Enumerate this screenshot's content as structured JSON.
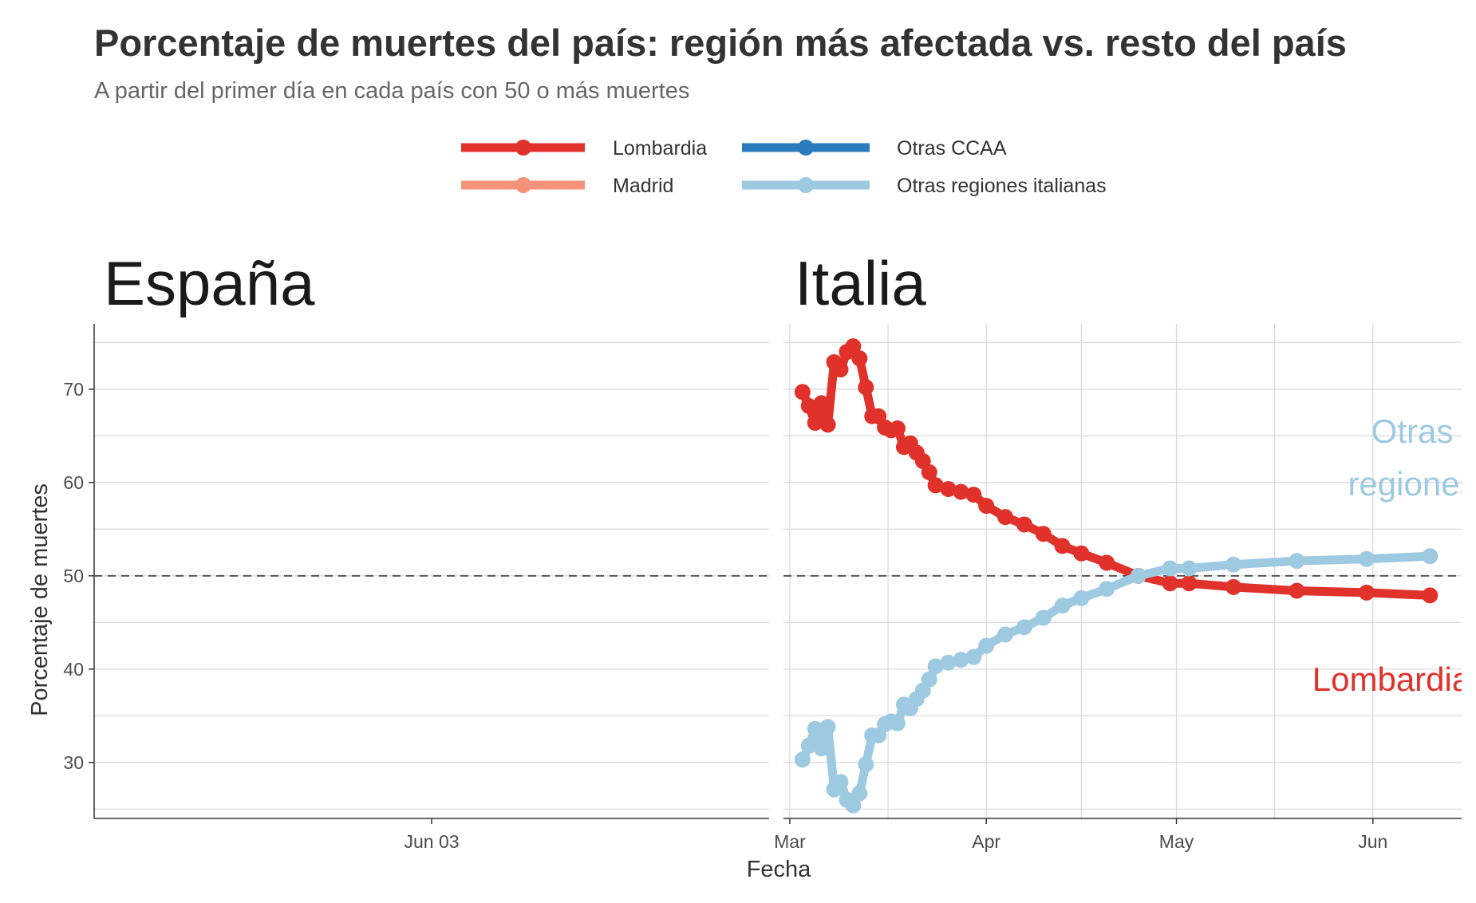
{
  "title": "Porcentaje de muertes del país: región más afectada vs. resto del país",
  "subtitle": "A partir del primer día en cada país con 50 o más muertes",
  "legend": [
    {
      "label": "Lombardia",
      "color": "#e0312a"
    },
    {
      "label": "Otras CCAA",
      "color": "#2c7bbd"
    },
    {
      "label": "Madrid",
      "color": "#f4937a"
    },
    {
      "label": "Otras regiones italianas",
      "color": "#9ecae1"
    }
  ],
  "chart_data": {
    "type": "line",
    "ylabel": "Porcentaje de muertes",
    "xlabel": "Fecha",
    "ylim": [
      24,
      77
    ],
    "yticks": [
      30,
      40,
      50,
      60,
      70
    ],
    "reference_line": 50,
    "grid": true,
    "legend_position": "top",
    "panels": [
      {
        "name": "España",
        "xticks": [
          {
            "label": "Jun 03",
            "date": "2020-06-03"
          }
        ],
        "series": []
      },
      {
        "name": "Italia",
        "xlim": [
          "2020-02-29",
          "2020-06-15"
        ],
        "xticks": [
          {
            "label": "Mar",
            "date": "2020-03-01"
          },
          {
            "label": "Apr",
            "date": "2020-04-01"
          },
          {
            "label": "May",
            "date": "2020-05-01"
          },
          {
            "label": "Jun",
            "date": "2020-06-01"
          }
        ],
        "direct_labels": [
          {
            "text": "Otras regiones",
            "series": "Otras regiones italianas",
            "color": "#9ecae1"
          },
          {
            "text": "Lombardia",
            "series": "Lombardia",
            "color": "#e0312a"
          }
        ],
        "series": [
          {
            "name": "Lombardia",
            "color": "#e0312a",
            "x": [
              "2020-03-03",
              "2020-03-04",
              "2020-03-05",
              "2020-03-06",
              "2020-03-07",
              "2020-03-08",
              "2020-03-09",
              "2020-03-10",
              "2020-03-11",
              "2020-03-12",
              "2020-03-13",
              "2020-03-14",
              "2020-03-15",
              "2020-03-16",
              "2020-03-17",
              "2020-03-18",
              "2020-03-19",
              "2020-03-20",
              "2020-03-21",
              "2020-03-22",
              "2020-03-23",
              "2020-03-24",
              "2020-03-26",
              "2020-03-28",
              "2020-03-30",
              "2020-04-01",
              "2020-04-04",
              "2020-04-07",
              "2020-04-10",
              "2020-04-13",
              "2020-04-16",
              "2020-04-20",
              "2020-04-25",
              "2020-04-30",
              "2020-05-03",
              "2020-05-10",
              "2020-05-20",
              "2020-05-31",
              "2020-06-10"
            ],
            "y": [
              69.7,
              68.2,
              66.4,
              68.5,
              66.2,
              72.9,
              72.1,
              74.0,
              74.6,
              73.3,
              70.2,
              67.1,
              67.1,
              65.9,
              65.6,
              65.8,
              63.8,
              64.2,
              63.2,
              62.3,
              61.1,
              59.7,
              59.3,
              59.0,
              58.7,
              57.5,
              56.3,
              55.5,
              54.5,
              53.2,
              52.4,
              51.4,
              50.0,
              49.2,
              49.2,
              48.8,
              48.4,
              48.2,
              47.9
            ]
          },
          {
            "name": "Otras regiones italianas",
            "color": "#9ecae1",
            "x": [
              "2020-03-03",
              "2020-03-04",
              "2020-03-05",
              "2020-03-06",
              "2020-03-07",
              "2020-03-08",
              "2020-03-09",
              "2020-03-10",
              "2020-03-11",
              "2020-03-12",
              "2020-03-13",
              "2020-03-14",
              "2020-03-15",
              "2020-03-16",
              "2020-03-17",
              "2020-03-18",
              "2020-03-19",
              "2020-03-20",
              "2020-03-21",
              "2020-03-22",
              "2020-03-23",
              "2020-03-24",
              "2020-03-26",
              "2020-03-28",
              "2020-03-30",
              "2020-04-01",
              "2020-04-04",
              "2020-04-07",
              "2020-04-10",
              "2020-04-13",
              "2020-04-16",
              "2020-04-20",
              "2020-04-25",
              "2020-04-30",
              "2020-05-03",
              "2020-05-10",
              "2020-05-20",
              "2020-05-31",
              "2020-06-10"
            ],
            "y": [
              30.3,
              31.8,
              33.6,
              31.5,
              33.8,
              27.1,
              27.9,
              26.0,
              25.4,
              26.7,
              29.8,
              32.9,
              32.9,
              34.1,
              34.4,
              34.2,
              36.2,
              35.8,
              36.8,
              37.7,
              38.9,
              40.3,
              40.7,
              41.0,
              41.3,
              42.5,
              43.7,
              44.5,
              45.5,
              46.8,
              47.6,
              48.6,
              50.0,
              50.8,
              50.8,
              51.2,
              51.6,
              51.8,
              52.1
            ]
          }
        ]
      }
    ]
  }
}
